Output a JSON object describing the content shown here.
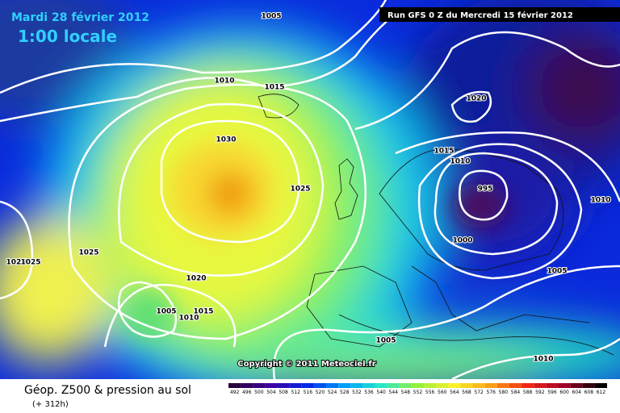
{
  "header": {
    "date": "Mardi 28 février 2012",
    "time": "1:00 locale",
    "run": "Run GFS 0 Z du Mercredi 15 février 2012"
  },
  "isobar_labels": [
    1005,
    1010,
    1015,
    1020,
    1030,
    1015,
    1010,
    1025,
    995,
    1010,
    1000,
    1025,
    1025,
    1025,
    1020,
    1005,
    1005,
    1015,
    1010,
    1005,
    1010
  ],
  "copyright": "Copyright © 2011 Meteociel.fr",
  "footer": {
    "title": "Géop. Z500 & pression au sol",
    "lead_time": "(+ 312h)"
  },
  "scale": [
    492,
    496,
    500,
    504,
    508,
    512,
    516,
    520,
    524,
    528,
    532,
    536,
    540,
    544,
    548,
    552,
    556,
    560,
    564,
    568,
    572,
    576,
    580,
    584,
    588,
    592,
    596,
    600,
    604,
    608,
    612
  ]
}
